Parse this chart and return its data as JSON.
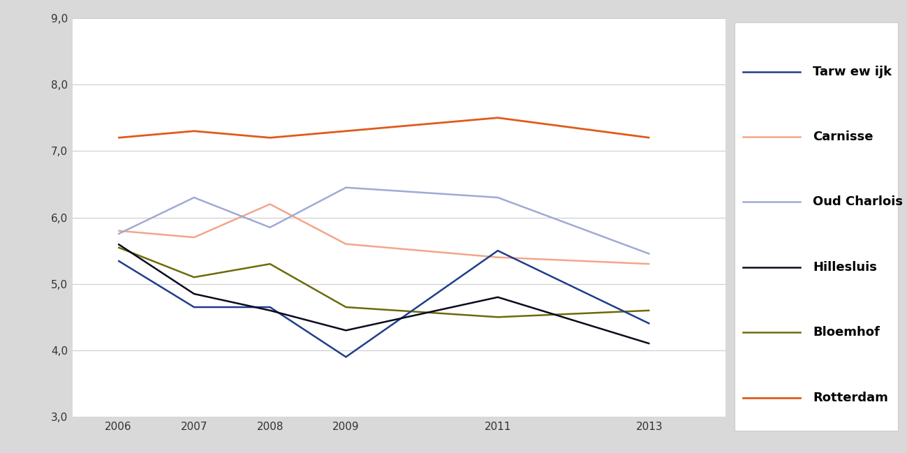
{
  "years": [
    2006,
    2007,
    2008,
    2009,
    2011,
    2013
  ],
  "series": {
    "Tarw ew ijk": {
      "values": [
        5.35,
        4.65,
        4.65,
        3.9,
        5.5,
        4.4
      ],
      "color": "#1f3d8a",
      "linewidth": 1.8,
      "zorder": 4
    },
    "Carnisse": {
      "values": [
        5.8,
        5.7,
        6.2,
        5.6,
        5.4,
        5.3
      ],
      "color": "#f4a58a",
      "linewidth": 1.8,
      "zorder": 3
    },
    "Oud Charlois": {
      "values": [
        5.75,
        6.3,
        5.85,
        6.45,
        6.3,
        5.45
      ],
      "color": "#a0aad4",
      "linewidth": 1.8,
      "zorder": 3
    },
    "Hillesluis": {
      "values": [
        5.6,
        4.85,
        4.6,
        4.3,
        4.8,
        4.1
      ],
      "color": "#0a0a1e",
      "linewidth": 1.8,
      "zorder": 4
    },
    "Bloemhof": {
      "values": [
        5.55,
        5.1,
        5.3,
        4.65,
        4.5,
        4.6
      ],
      "color": "#6b6b0a",
      "linewidth": 1.8,
      "zorder": 3
    },
    "Rotterdam": {
      "values": [
        7.2,
        7.3,
        7.2,
        7.3,
        7.5,
        7.2
      ],
      "color": "#e05a1e",
      "linewidth": 2.0,
      "zorder": 5
    }
  },
  "ylim": [
    3.0,
    9.0
  ],
  "yticks": [
    3.0,
    4.0,
    5.0,
    6.0,
    7.0,
    8.0,
    9.0
  ],
  "ytick_labels": [
    "3,0",
    "4,0",
    "5,0",
    "6,0",
    "7,0",
    "8,0",
    "9,0"
  ],
  "background_color": "#d9d9d9",
  "plot_background": "#ffffff",
  "legend_background": "#ffffff",
  "legend_edge_color": "#cccccc",
  "grid_color": "#cccccc",
  "legend_order": [
    "Tarw ew ijk",
    "Carnisse",
    "Oud Charlois",
    "Hillesluis",
    "Bloemhof",
    "Rotterdam"
  ],
  "tick_fontsize": 11,
  "legend_fontsize": 13
}
